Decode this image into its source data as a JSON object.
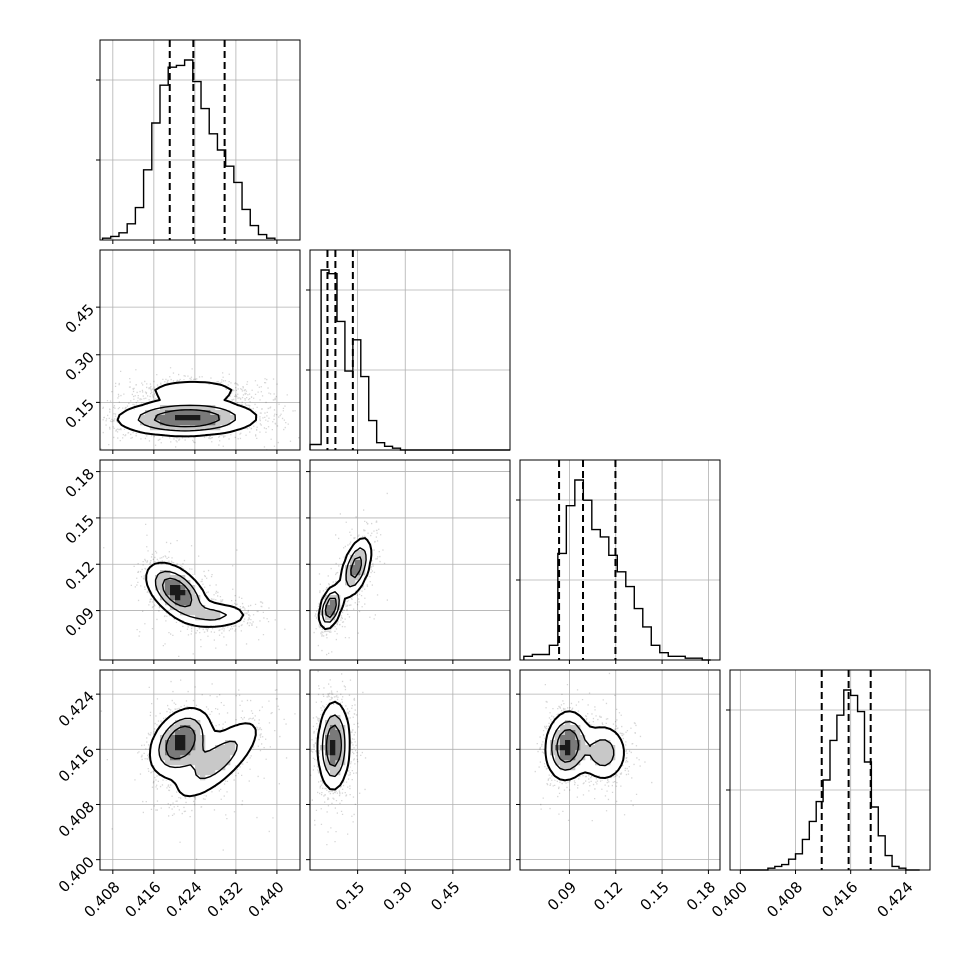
{
  "chart_data": {
    "type": "corner",
    "title": "",
    "parameters": [
      {
        "range": [
          0.4055,
          0.4445
        ],
        "ticks": [
          0.408,
          0.416,
          0.424,
          0.432,
          0.44
        ],
        "tick_labels": [
          "0.408",
          "0.416",
          "0.424",
          "0.432",
          "0.440"
        ],
        "quantiles": [
          0.4191,
          0.4237,
          0.4298
        ],
        "histogram": {
          "edges": [
            0.406,
            0.4076,
            0.4092,
            0.4108,
            0.4124,
            0.414,
            0.4156,
            0.4172,
            0.4188,
            0.4204,
            0.422,
            0.4236,
            0.4252,
            0.4268,
            0.4284,
            0.43,
            0.4316,
            0.4332,
            0.4348,
            0.4364,
            0.438,
            0.4396
          ],
          "counts": [
            0.01,
            0.02,
            0.04,
            0.09,
            0.18,
            0.39,
            0.65,
            0.86,
            0.96,
            0.97,
            1.0,
            0.88,
            0.73,
            0.59,
            0.5,
            0.41,
            0.32,
            0.17,
            0.08,
            0.03,
            0.01
          ]
        }
      },
      {
        "range": [
          0.0,
          0.63
        ],
        "ticks": [
          0.15,
          0.3,
          0.45
        ],
        "tick_labels": [
          "0.15",
          "0.30",
          "0.45"
        ],
        "quantiles": [
          0.055,
          0.08,
          0.135
        ],
        "histogram": {
          "edges": [
            0.0,
            0.035,
            0.06,
            0.085,
            0.11,
            0.135,
            0.16,
            0.185,
            0.21,
            0.235,
            0.26,
            0.285,
            0.31,
            0.63
          ],
          "counts": [
            0.03,
            0.98,
            0.96,
            0.7,
            0.43,
            0.6,
            0.4,
            0.16,
            0.04,
            0.02,
            0.01,
            0.0,
            0.0
          ]
        }
      },
      {
        "range": [
          0.058,
          0.1875
        ],
        "ticks": [
          0.09,
          0.12,
          0.15,
          0.18
        ],
        "tick_labels": [
          "0.09",
          "0.12",
          "0.15",
          "0.18"
        ],
        "quantiles": [
          0.0833,
          0.0988,
          0.1198
        ],
        "histogram": {
          "edges": [
            0.0605,
            0.066,
            0.0715,
            0.077,
            0.0825,
            0.088,
            0.0935,
            0.099,
            0.1045,
            0.11,
            0.1155,
            0.121,
            0.1265,
            0.132,
            0.1375,
            0.143,
            0.1485,
            0.154,
            0.1595,
            0.165,
            0.1705,
            0.176,
            0.1815
          ],
          "counts": [
            0.02,
            0.03,
            0.03,
            0.08,
            0.58,
            0.84,
            0.98,
            0.87,
            0.71,
            0.67,
            0.57,
            0.48,
            0.4,
            0.28,
            0.18,
            0.08,
            0.04,
            0.02,
            0.02,
            0.01,
            0.01,
            0.0
          ]
        }
      },
      {
        "range": [
          0.3985,
          0.4275
        ],
        "ticks": [
          0.4,
          0.408,
          0.416,
          0.424
        ],
        "tick_labels": [
          "0.400",
          "0.408",
          "0.416",
          "0.424"
        ],
        "quantiles": [
          0.4118,
          0.4157,
          0.4189
        ],
        "histogram": {
          "edges": [
            0.4,
            0.401,
            0.402,
            0.403,
            0.404,
            0.405,
            0.406,
            0.407,
            0.408,
            0.409,
            0.41,
            0.411,
            0.412,
            0.413,
            0.414,
            0.415,
            0.416,
            0.417,
            0.418,
            0.419,
            0.42,
            0.421,
            0.422,
            0.423,
            0.424,
            0.425,
            0.426
          ],
          "counts": [
            0.0,
            0.0,
            0.0,
            0.0,
            0.01,
            0.02,
            0.03,
            0.06,
            0.09,
            0.17,
            0.27,
            0.38,
            0.5,
            0.72,
            0.86,
            1.0,
            0.97,
            0.88,
            0.6,
            0.35,
            0.19,
            0.08,
            0.02,
            0.01,
            0.0,
            0.0
          ]
        }
      }
    ],
    "pairs": [
      {
        "row": 1,
        "col": 0,
        "modes": [
          {
            "mean": [
              0.4225,
              0.1
            ],
            "sd": [
              0.0068,
              0.028
            ],
            "rho": 0.05,
            "w": 0.75
          },
          {
            "mean": [
              0.4237,
              0.187
            ],
            "sd": [
              0.0055,
              0.02
            ],
            "rho": 0.0,
            "w": 0.25
          }
        ]
      },
      {
        "row": 2,
        "col": 0,
        "modes": [
          {
            "mean": [
              0.4205,
              0.102
            ],
            "sd": [
              0.003,
              0.0095
            ],
            "rho": -0.5,
            "w": 0.7
          },
          {
            "mean": [
              0.4283,
              0.087
            ],
            "sd": [
              0.0034,
              0.0045
            ],
            "rho": 0.0,
            "w": 0.3
          }
        ]
      },
      {
        "row": 2,
        "col": 1,
        "modes": [
          {
            "mean": [
              0.065,
              0.092
            ],
            "sd": [
              0.018,
              0.007
            ],
            "rho": 0.4,
            "w": 0.55
          },
          {
            "mean": [
              0.145,
              0.118
            ],
            "sd": [
              0.025,
              0.01
            ],
            "rho": 0.5,
            "w": 0.45
          }
        ]
      },
      {
        "row": 3,
        "col": 0,
        "modes": [
          {
            "mean": [
              0.4212,
              0.417
            ],
            "sd": [
              0.003,
              0.0025
            ],
            "rho": 0.35,
            "w": 0.65
          },
          {
            "mean": [
              0.4285,
              0.4145
            ],
            "sd": [
              0.0045,
              0.0032
            ],
            "rho": 0.75,
            "w": 0.35
          }
        ]
      },
      {
        "row": 3,
        "col": 1,
        "modes": [
          {
            "mean": [
              0.075,
              0.4165
            ],
            "sd": [
              0.025,
              0.0032
            ],
            "rho": 0.05,
            "w": 1.0
          }
        ]
      },
      {
        "row": 3,
        "col": 2,
        "modes": [
          {
            "mean": [
              0.0885,
              0.4165
            ],
            "sd": [
              0.007,
              0.0025
            ],
            "rho": 0.1,
            "w": 0.65
          },
          {
            "mean": [
              0.112,
              0.4155
            ],
            "sd": [
              0.008,
              0.0022
            ],
            "rho": 0.0,
            "w": 0.35
          }
        ]
      }
    ]
  }
}
